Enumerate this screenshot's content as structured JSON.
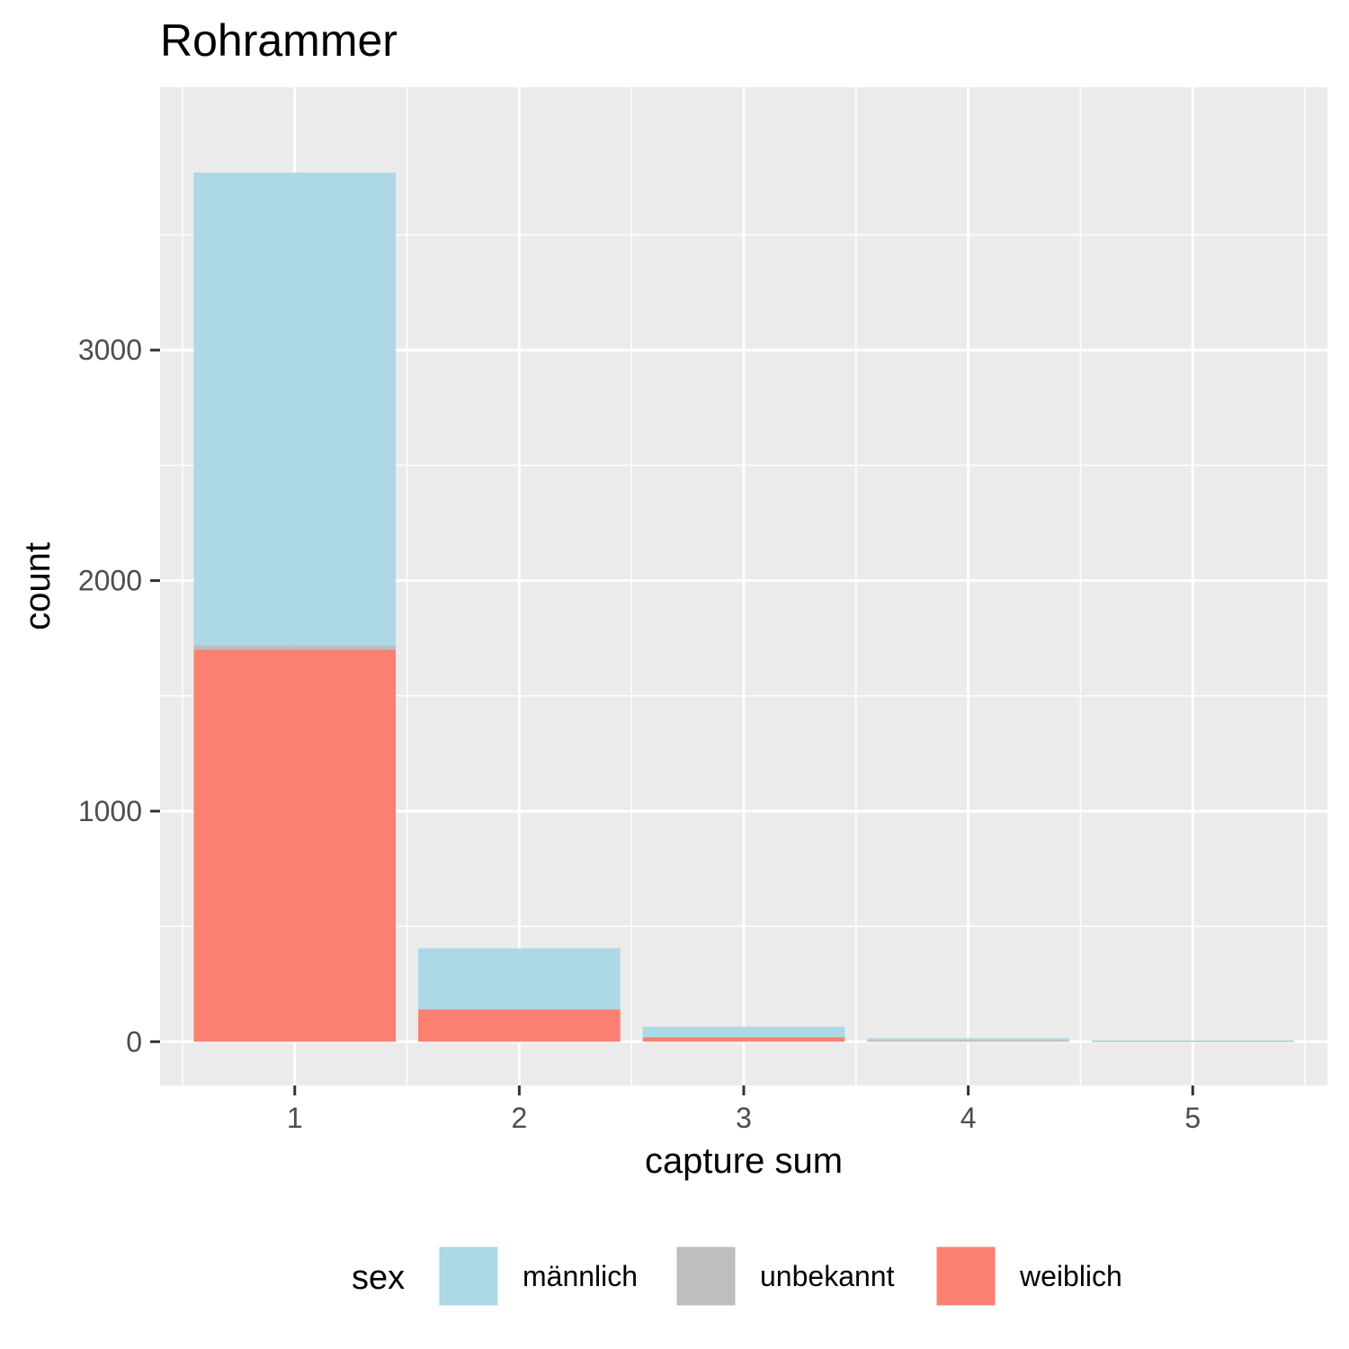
{
  "chart_data": {
    "type": "bar",
    "stacked": true,
    "title": "Rohrammer",
    "xlabel": "capture sum",
    "ylabel": "count",
    "categories": [
      "1",
      "2",
      "3",
      "4",
      "5"
    ],
    "yticks": [
      0,
      1000,
      2000,
      3000
    ],
    "ylim": [
      -190,
      4140
    ],
    "grid": true,
    "legend": {
      "title": "sex",
      "position": "bottom"
    },
    "series": [
      {
        "name": "weiblich",
        "color": "#FA8072",
        "values": [
          1700,
          140,
          20,
          3,
          1
        ]
      },
      {
        "name": "unbekannt",
        "color": "#BEBEBE",
        "values": [
          20,
          0,
          0,
          0,
          0
        ]
      },
      {
        "name": "männlich",
        "color": "#ADD8E6",
        "values": [
          2050,
          265,
          45,
          12,
          5
        ]
      }
    ],
    "legend_order": [
      "männlich",
      "unbekannt",
      "weiblich"
    ],
    "colors": {
      "panel": "#EBEBEB",
      "grid": "#FFFFFF",
      "tick": "#333333"
    }
  }
}
